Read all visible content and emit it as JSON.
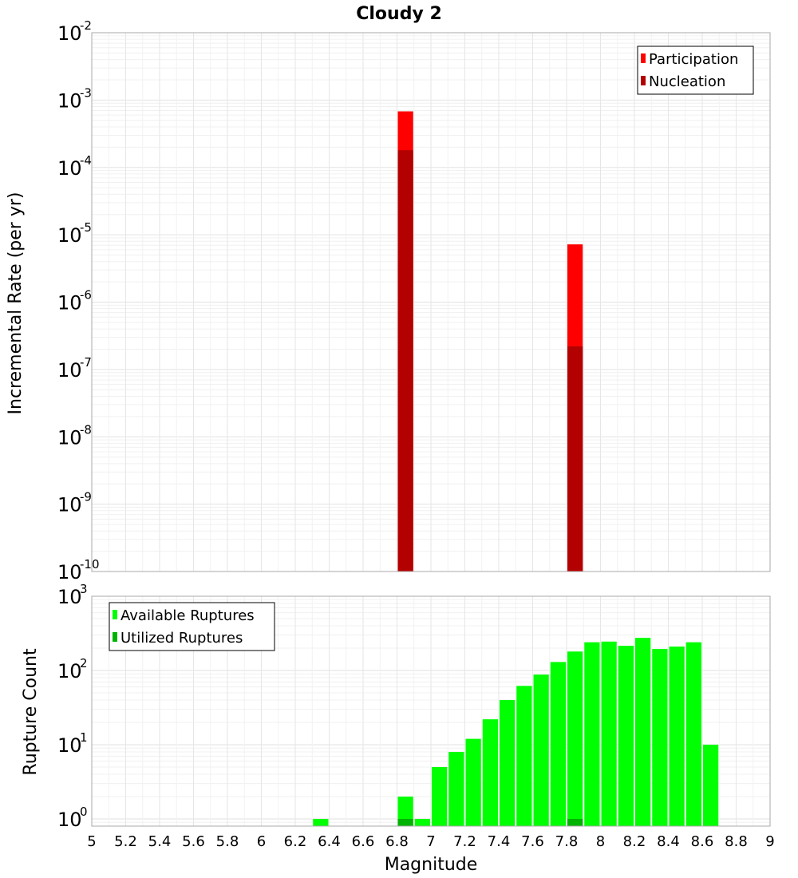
{
  "chart_data": {
    "title": "Cloudy 2",
    "xlabel": "Magnitude",
    "xlim": [
      5,
      9
    ],
    "x_ticks": [
      "5",
      "5.2",
      "5.4",
      "5.6",
      "5.8",
      "6",
      "6.2",
      "6.4",
      "6.6",
      "6.8",
      "7",
      "7.2",
      "7.4",
      "7.6",
      "7.8",
      "8",
      "8.2",
      "8.4",
      "8.6",
      "8.8",
      "9"
    ],
    "grid": true,
    "panels": [
      {
        "type": "bar",
        "yscale": "log",
        "ylabel": "Incremental Rate (per yr)",
        "ylim": [
          1e-10,
          0.01
        ],
        "y_tick_exponents": [
          "-10",
          "-9",
          "-8",
          "-7",
          "-6",
          "-5",
          "-4",
          "-3",
          "-2"
        ],
        "legend_position": "top-right",
        "series": [
          {
            "name": "Participation",
            "color": "#ff0000",
            "points": [
              {
                "x": 6.85,
                "y": 0.00068
              },
              {
                "x": 7.85,
                "y": 7.2e-06
              }
            ]
          },
          {
            "name": "Nucleation",
            "color": "#b30000",
            "points": [
              {
                "x": 6.85,
                "y": 0.00018
              },
              {
                "x": 7.85,
                "y": 2.2e-07
              }
            ]
          }
        ]
      },
      {
        "type": "bar",
        "yscale": "log",
        "ylabel": "Rupture Count",
        "ylim": [
          0.8,
          1000
        ],
        "y_tick_exponents": [
          "0",
          "1",
          "2",
          "3"
        ],
        "legend_position": "top-left",
        "series": [
          {
            "name": "Available Ruptures",
            "color": "#00ff00",
            "points": [
              {
                "x": 6.35,
                "y": 1
              },
              {
                "x": 6.85,
                "y": 2
              },
              {
                "x": 6.95,
                "y": 1
              },
              {
                "x": 7.05,
                "y": 5
              },
              {
                "x": 7.15,
                "y": 8
              },
              {
                "x": 7.25,
                "y": 12
              },
              {
                "x": 7.35,
                "y": 22
              },
              {
                "x": 7.45,
                "y": 40
              },
              {
                "x": 7.55,
                "y": 62
              },
              {
                "x": 7.65,
                "y": 88
              },
              {
                "x": 7.75,
                "y": 130
              },
              {
                "x": 7.85,
                "y": 180
              },
              {
                "x": 7.95,
                "y": 240
              },
              {
                "x": 8.05,
                "y": 245
              },
              {
                "x": 8.15,
                "y": 215
              },
              {
                "x": 8.25,
                "y": 275
              },
              {
                "x": 8.35,
                "y": 195
              },
              {
                "x": 8.45,
                "y": 210
              },
              {
                "x": 8.55,
                "y": 240
              },
              {
                "x": 8.65,
                "y": 10
              }
            ]
          },
          {
            "name": "Utilized Ruptures",
            "color": "#00b300",
            "points": [
              {
                "x": 6.85,
                "y": 1
              },
              {
                "x": 7.85,
                "y": 1
              }
            ]
          }
        ]
      }
    ]
  }
}
